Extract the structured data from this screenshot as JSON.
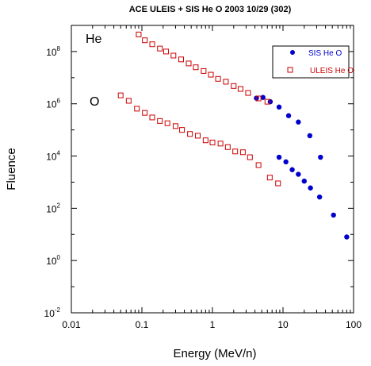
{
  "chart_data": {
    "type": "scatter",
    "title": "ACE ULEIS + SIS He O  2003 10/29 (302)",
    "xlabel": "Energy (MeV/n)",
    "ylabel": "Fluence",
    "xscale": "log",
    "yscale": "log",
    "xlim": [
      0.01,
      100
    ],
    "ylim": [
      0.01,
      1000000000
    ],
    "x_ticks": [
      {
        "value": 0.01,
        "label": "0.01"
      },
      {
        "value": 0.1,
        "label": "0.1"
      },
      {
        "value": 1,
        "label": "1"
      },
      {
        "value": 10,
        "label": "10"
      },
      {
        "value": 100,
        "label": "100"
      }
    ],
    "y_ticks": [
      {
        "value": 0.01,
        "base": "10",
        "exp": "-2"
      },
      {
        "value": 1,
        "base": "10",
        "exp": "0"
      },
      {
        "value": 100,
        "base": "10",
        "exp": "2"
      },
      {
        "value": 10000,
        "base": "10",
        "exp": "4"
      },
      {
        "value": 1000000,
        "base": "10",
        "exp": "6"
      },
      {
        "value": 100000000,
        "base": "10",
        "exp": "8"
      }
    ],
    "annotations": [
      {
        "text": "He",
        "x": 0.025,
        "y": 200000000
      },
      {
        "text": "O",
        "x": 0.025,
        "y": 2500000
      }
    ],
    "legend": {
      "placement": "top-right"
    },
    "series": [
      {
        "name": "SIS He O",
        "marker": "filled-circle",
        "color": "#0000cc",
        "points": [
          {
            "x": 4.2,
            "y": 1650000
          },
          {
            "x": 5.2,
            "y": 1750000
          },
          {
            "x": 6.6,
            "y": 1200000
          },
          {
            "x": 8.8,
            "y": 750000
          },
          {
            "x": 12.0,
            "y": 350000
          },
          {
            "x": 16.5,
            "y": 200000
          },
          {
            "x": 24.0,
            "y": 60000
          },
          {
            "x": 34.0,
            "y": 9000
          },
          {
            "x": 8.8,
            "y": 9000
          },
          {
            "x": 11.0,
            "y": 6000
          },
          {
            "x": 13.5,
            "y": 3000
          },
          {
            "x": 16.5,
            "y": 2000
          },
          {
            "x": 20.0,
            "y": 1100
          },
          {
            "x": 24.5,
            "y": 600
          },
          {
            "x": 33.0,
            "y": 270
          },
          {
            "x": 52.0,
            "y": 55
          },
          {
            "x": 80.0,
            "y": 8
          }
        ]
      },
      {
        "name": "ULEIS He O",
        "marker": "open-square",
        "color": "#cc0000",
        "points": [
          {
            "x": 0.09,
            "y": 450000000
          },
          {
            "x": 0.11,
            "y": 270000000
          },
          {
            "x": 0.14,
            "y": 190000000
          },
          {
            "x": 0.18,
            "y": 130000000
          },
          {
            "x": 0.22,
            "y": 100000000
          },
          {
            "x": 0.28,
            "y": 70000000
          },
          {
            "x": 0.36,
            "y": 50000000
          },
          {
            "x": 0.46,
            "y": 35000000
          },
          {
            "x": 0.58,
            "y": 25000000
          },
          {
            "x": 0.75,
            "y": 18000000
          },
          {
            "x": 0.95,
            "y": 13000000
          },
          {
            "x": 1.2,
            "y": 9000000
          },
          {
            "x": 1.55,
            "y": 7000000
          },
          {
            "x": 2.0,
            "y": 4800000
          },
          {
            "x": 2.5,
            "y": 3700000
          },
          {
            "x": 3.2,
            "y": 2600000
          },
          {
            "x": 4.5,
            "y": 1600000
          },
          {
            "x": 6.0,
            "y": 1200000
          },
          {
            "x": 0.05,
            "y": 2100000
          },
          {
            "x": 0.065,
            "y": 1300000
          },
          {
            "x": 0.085,
            "y": 650000
          },
          {
            "x": 0.11,
            "y": 450000
          },
          {
            "x": 0.14,
            "y": 300000
          },
          {
            "x": 0.18,
            "y": 220000
          },
          {
            "x": 0.23,
            "y": 180000
          },
          {
            "x": 0.3,
            "y": 140000
          },
          {
            "x": 0.37,
            "y": 100000
          },
          {
            "x": 0.48,
            "y": 70000
          },
          {
            "x": 0.62,
            "y": 60000
          },
          {
            "x": 0.8,
            "y": 40000
          },
          {
            "x": 1.0,
            "y": 33000
          },
          {
            "x": 1.3,
            "y": 30000
          },
          {
            "x": 1.65,
            "y": 22000
          },
          {
            "x": 2.1,
            "y": 15000
          },
          {
            "x": 2.7,
            "y": 14000
          },
          {
            "x": 3.4,
            "y": 9000
          },
          {
            "x": 4.5,
            "y": 4500
          },
          {
            "x": 6.5,
            "y": 1500
          },
          {
            "x": 8.5,
            "y": 900
          }
        ]
      }
    ]
  }
}
